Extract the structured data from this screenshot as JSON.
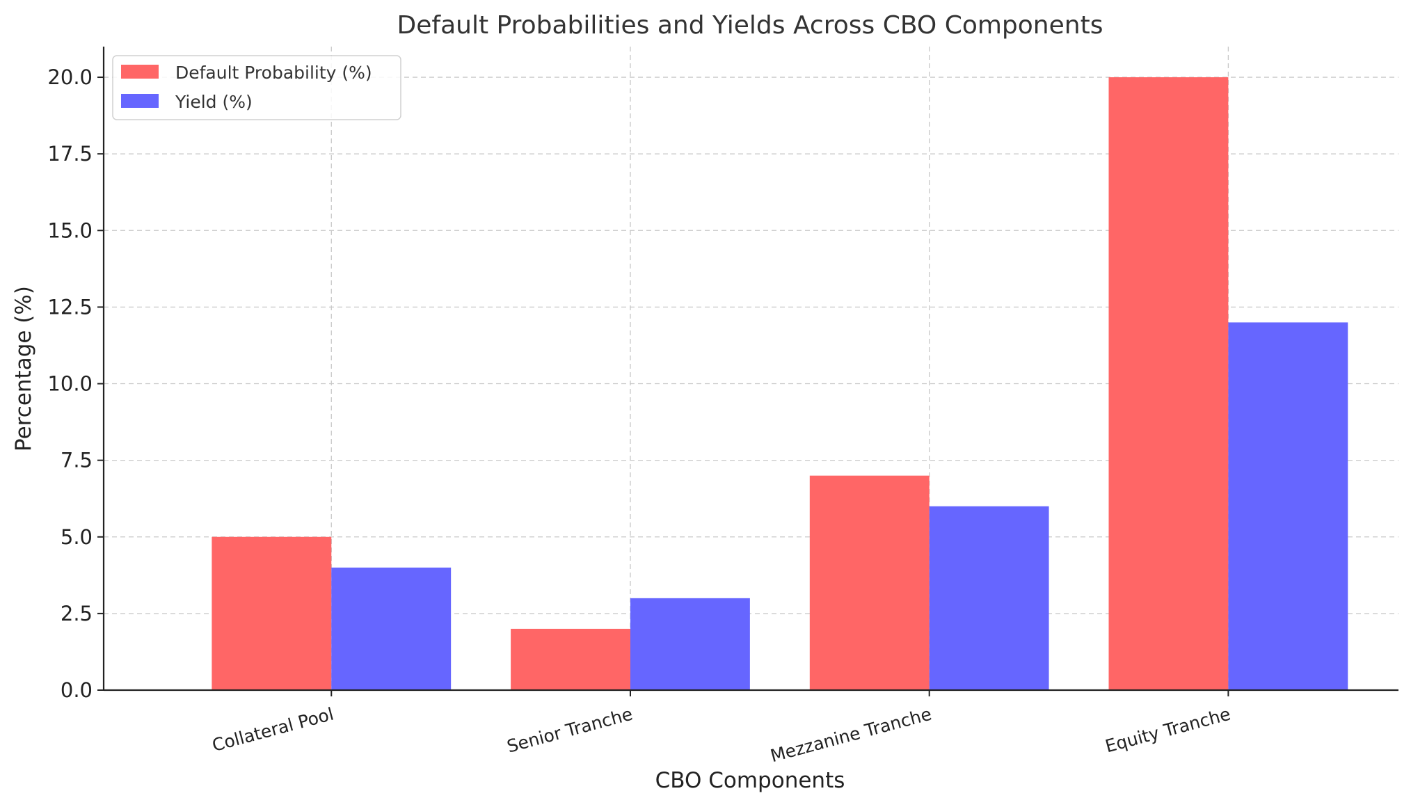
{
  "chart_data": {
    "type": "bar",
    "title": "Default Probabilities and Yields Across CBO Components",
    "xlabel": "CBO Components",
    "ylabel": "Percentage (%)",
    "categories": [
      "Collateral Pool",
      "Senior Tranche",
      "Mezzanine Tranche",
      "Equity Tranche"
    ],
    "series": [
      {
        "name": "Default Probability (%)",
        "values": [
          5,
          2,
          7,
          20
        ],
        "color": "#ff6666"
      },
      {
        "name": "Yield (%)",
        "values": [
          4,
          3,
          6,
          12
        ],
        "color": "#6666ff"
      }
    ],
    "ylim": [
      0,
      21
    ],
    "yticks": [
      0.0,
      2.5,
      5.0,
      7.5,
      10.0,
      12.5,
      15.0,
      17.5,
      20.0
    ],
    "ytick_labels": [
      "0.0",
      "2.5",
      "5.0",
      "7.5",
      "10.0",
      "12.5",
      "15.0",
      "17.5",
      "20.0"
    ],
    "grid": true,
    "legend_position": "top-left"
  }
}
